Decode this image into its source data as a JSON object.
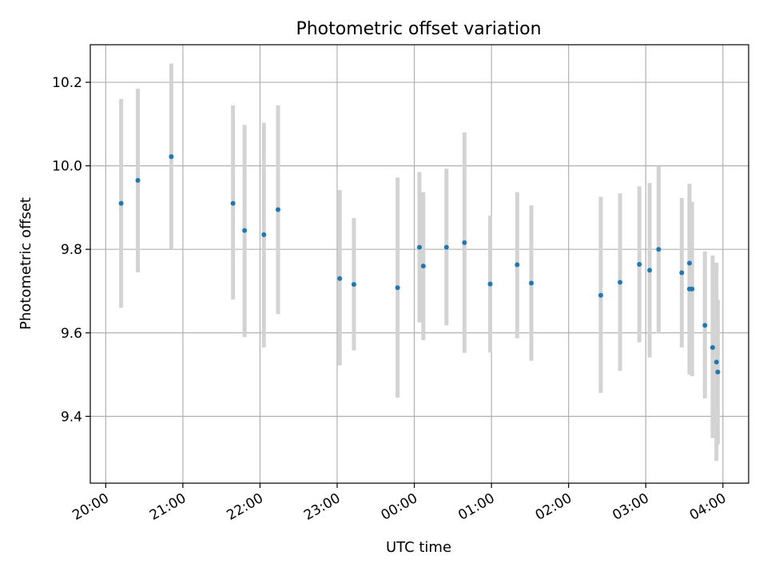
{
  "chart_data": {
    "type": "scatter",
    "title": "Photometric offset variation",
    "xlabel": "UTC time",
    "ylabel": "Photometric offset",
    "x_ticks": [
      "20:00",
      "21:00",
      "22:00",
      "23:00",
      "00:00",
      "01:00",
      "02:00",
      "03:00",
      "04:00"
    ],
    "y_ticks": [
      "9.4",
      "9.6",
      "9.8",
      "10.0",
      "10.2"
    ],
    "xlim": [
      "19:48",
      "04:20"
    ],
    "ylim": [
      9.24,
      10.29
    ],
    "grid": true,
    "colors": {
      "point": "#1f77b4",
      "errorbar": "#d3d3d3",
      "grid": "#b0b0b0"
    },
    "points": [
      {
        "t": "20:12",
        "y": 9.91,
        "lo": 9.66,
        "hi": 10.16
      },
      {
        "t": "20:25",
        "y": 9.965,
        "lo": 9.745,
        "hi": 10.185
      },
      {
        "t": "20:51",
        "y": 10.022,
        "lo": 9.8,
        "hi": 10.245
      },
      {
        "t": "21:39",
        "y": 9.91,
        "lo": 9.68,
        "hi": 10.145
      },
      {
        "t": "21:48",
        "y": 9.845,
        "lo": 9.59,
        "hi": 10.098
      },
      {
        "t": "22:03",
        "y": 9.835,
        "lo": 9.565,
        "hi": 10.103
      },
      {
        "t": "22:14",
        "y": 9.895,
        "lo": 9.645,
        "hi": 10.145
      },
      {
        "t": "23:02",
        "y": 9.73,
        "lo": 9.522,
        "hi": 9.942
      },
      {
        "t": "23:13",
        "y": 9.716,
        "lo": 9.558,
        "hi": 9.875
      },
      {
        "t": "23:47",
        "y": 9.708,
        "lo": 9.445,
        "hi": 9.972
      },
      {
        "t": "00:04",
        "y": 9.805,
        "lo": 9.625,
        "hi": 9.985
      },
      {
        "t": "00:07",
        "y": 9.76,
        "lo": 9.582,
        "hi": 9.937
      },
      {
        "t": "00:25",
        "y": 9.805,
        "lo": 9.618,
        "hi": 9.993
      },
      {
        "t": "00:39",
        "y": 9.816,
        "lo": 9.552,
        "hi": 10.08
      },
      {
        "t": "00:59",
        "y": 9.717,
        "lo": 9.553,
        "hi": 9.881
      },
      {
        "t": "01:20",
        "y": 9.763,
        "lo": 9.587,
        "hi": 9.937
      },
      {
        "t": "01:31",
        "y": 9.719,
        "lo": 9.533,
        "hi": 9.905
      },
      {
        "t": "02:25",
        "y": 9.69,
        "lo": 9.456,
        "hi": 9.926
      },
      {
        "t": "02:40",
        "y": 9.721,
        "lo": 9.509,
        "hi": 9.934
      },
      {
        "t": "02:55",
        "y": 9.764,
        "lo": 9.577,
        "hi": 9.951
      },
      {
        "t": "03:03",
        "y": 9.75,
        "lo": 9.541,
        "hi": 9.959
      },
      {
        "t": "03:10",
        "y": 9.8,
        "lo": 9.598,
        "hi": 10.0
      },
      {
        "t": "03:28",
        "y": 9.744,
        "lo": 9.565,
        "hi": 9.923
      },
      {
        "t": "03:34",
        "y": 9.767,
        "lo": 9.5,
        "hi": 9.957
      },
      {
        "t": "03:34",
        "y": 9.705,
        "lo": 9.502,
        "hi": 9.908
      },
      {
        "t": "03:36",
        "y": 9.705,
        "lo": 9.496,
        "hi": 9.914
      },
      {
        "t": "03:46",
        "y": 9.618,
        "lo": 9.443,
        "hi": 9.795
      },
      {
        "t": "03:52",
        "y": 9.565,
        "lo": 9.348,
        "hi": 9.785
      },
      {
        "t": "03:55",
        "y": 9.53,
        "lo": 9.293,
        "hi": 9.768
      },
      {
        "t": "03:56",
        "y": 9.506,
        "lo": 9.333,
        "hi": 9.679
      }
    ]
  }
}
